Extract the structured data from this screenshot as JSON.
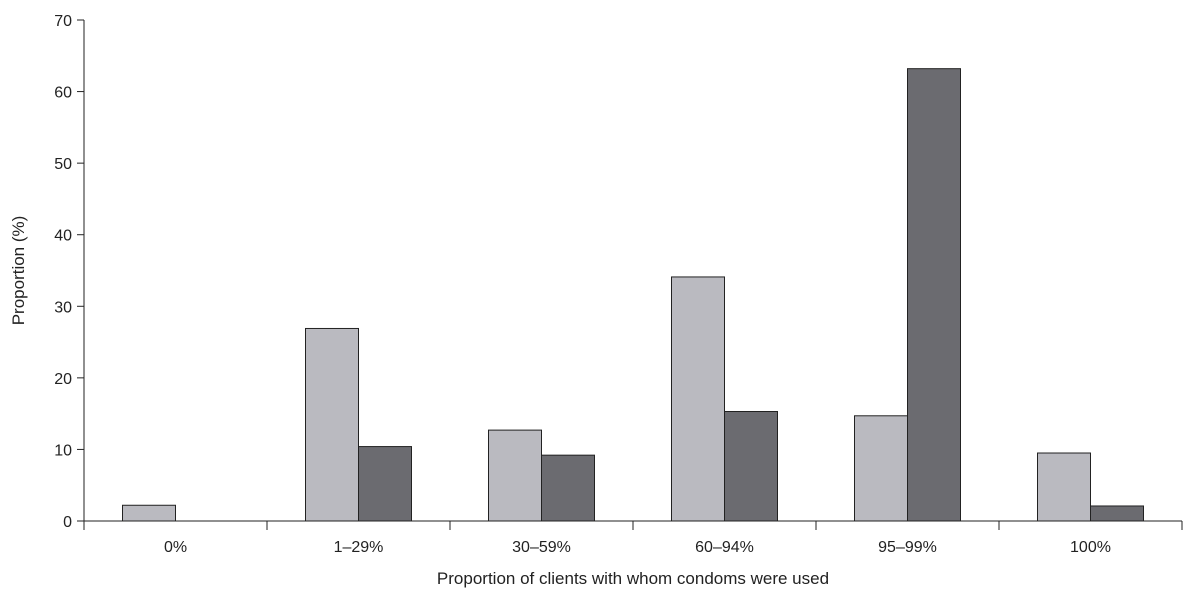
{
  "chart_data": {
    "type": "bar",
    "title": "",
    "xlabel": "Proportion of clients with whom condoms were used",
    "ylabel": "Proportion (%)",
    "ylim": [
      0,
      70
    ],
    "yticks": [
      "0",
      "10",
      "20",
      "30",
      "40",
      "50",
      "60",
      "70"
    ],
    "ytick_values": [
      0,
      10,
      20,
      30,
      40,
      50,
      60,
      70
    ],
    "categories": [
      "0%",
      "1–29%",
      "30–59%",
      "60–94%",
      "95–99%",
      "100%"
    ],
    "series": [
      {
        "values": [
          2.2,
          26.9,
          12.7,
          34.1,
          14.7,
          9.5
        ],
        "color": "#babac0"
      },
      {
        "values": [
          0,
          10.4,
          9.2,
          15.3,
          63.2,
          2.1
        ],
        "color": "#6b6b70"
      }
    ],
    "grid": false,
    "legend": "none"
  }
}
